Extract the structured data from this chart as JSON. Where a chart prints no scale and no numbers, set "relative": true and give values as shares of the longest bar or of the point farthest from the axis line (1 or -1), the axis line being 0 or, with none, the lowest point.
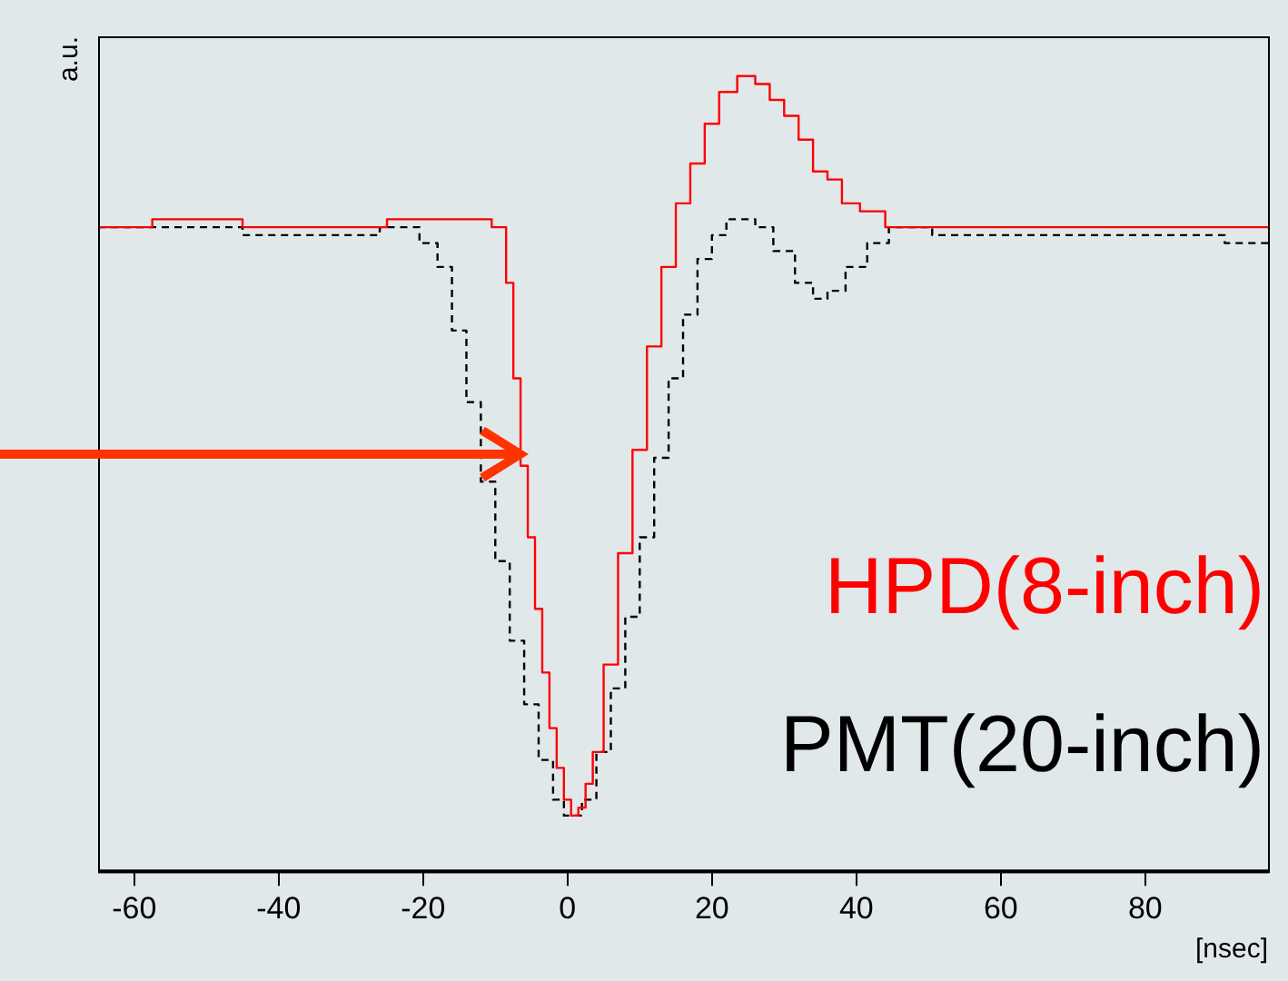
{
  "chart_data": {
    "type": "step",
    "relative": true,
    "xlabel": "[nsec]",
    "ylabel": "a.u.",
    "xlim": [
      -65,
      97
    ],
    "xticks": [
      -60,
      -40,
      -20,
      0,
      20,
      40,
      60,
      80
    ],
    "grid": false,
    "legend": "bottom right",
    "series": [
      {
        "name": "HPD(8-inch)",
        "color": "#ff0000",
        "line_style": "solid",
        "x": [
          -65,
          -50,
          -40,
          -30,
          -20,
          -12,
          -9,
          -8,
          -7,
          -6,
          -5,
          -4,
          -3,
          -2,
          -1,
          0,
          1,
          2,
          3,
          4,
          6,
          8,
          10,
          12,
          14,
          16,
          18,
          20,
          22,
          25,
          27,
          29,
          31,
          33,
          35,
          37,
          39,
          42,
          46,
          55,
          65,
          75,
          85,
          97
        ],
        "values": [
          0.81,
          0.82,
          0.81,
          0.81,
          0.82,
          0.82,
          0.81,
          0.74,
          0.62,
          0.51,
          0.42,
          0.33,
          0.25,
          0.18,
          0.13,
          0.09,
          0.07,
          0.08,
          0.11,
          0.15,
          0.26,
          0.4,
          0.53,
          0.66,
          0.76,
          0.84,
          0.89,
          0.94,
          0.98,
          1,
          0.99,
          0.97,
          0.95,
          0.92,
          0.88,
          0.87,
          0.84,
          0.83,
          0.81,
          0.81,
          0.81,
          0.81,
          0.81,
          0.81
        ]
      },
      {
        "name": "PMT(20-inch)",
        "color": "#000000",
        "line_style": "dashed",
        "x": [
          -65,
          -50,
          -40,
          -30,
          -22,
          -19,
          -17,
          -15,
          -13,
          -11,
          -9,
          -7,
          -5,
          -3,
          -1,
          0,
          1,
          3,
          5,
          7,
          9,
          11,
          13,
          15,
          17,
          19,
          21,
          23,
          25,
          27,
          30,
          33,
          35,
          37,
          40,
          43,
          46,
          55,
          70,
          85,
          97
        ],
        "values": [
          0.81,
          0.81,
          0.8,
          0.8,
          0.81,
          0.79,
          0.76,
          0.68,
          0.59,
          0.49,
          0.39,
          0.29,
          0.21,
          0.14,
          0.09,
          0.07,
          0.07,
          0.09,
          0.15,
          0.23,
          0.32,
          0.42,
          0.52,
          0.62,
          0.7,
          0.77,
          0.8,
          0.82,
          0.82,
          0.81,
          0.78,
          0.74,
          0.72,
          0.73,
          0.76,
          0.79,
          0.81,
          0.8,
          0.8,
          0.8,
          0.79
        ]
      }
    ]
  }
}
